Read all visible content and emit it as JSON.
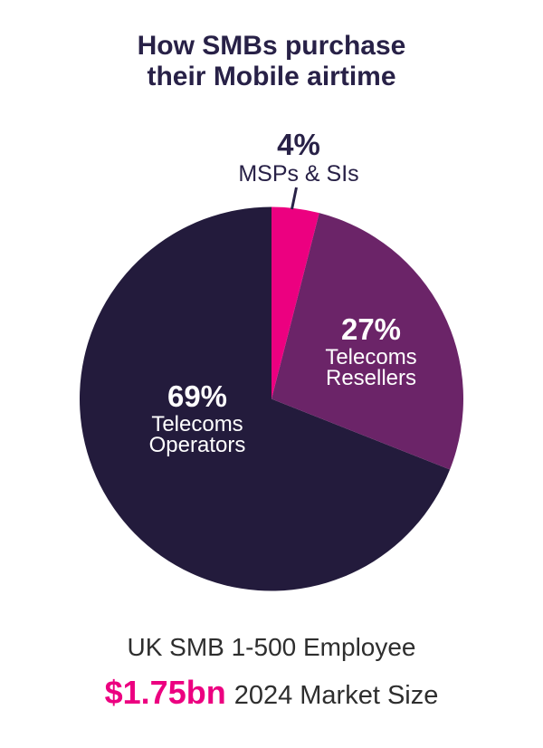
{
  "chart_data": {
    "type": "pie",
    "title": "How SMBs purchase their Mobile airtime",
    "start_angle_deg": 0,
    "direction": "clockwise",
    "legend": "none",
    "labels_inline": true,
    "slices": [
      {
        "label": "MSPs & SIs",
        "value_pct": 4,
        "display_pct": "4%",
        "color": "#ec0080",
        "label_position": "outside-top",
        "label_color": "#282147"
      },
      {
        "label": "Telecoms Resellers",
        "value_pct": 27,
        "display_pct": "27%",
        "color": "#6b2468",
        "label_position": "inside",
        "label_color": "#ffffff"
      },
      {
        "label": "Telecoms Operators",
        "value_pct": 69,
        "display_pct": "69%",
        "color": "#231b3c",
        "label_position": "inside",
        "label_color": "#ffffff"
      }
    ]
  },
  "footer": {
    "line1": "UK SMB 1-500 Employee",
    "market_value": "$1.75bn",
    "market_label": "2024 Market Size"
  },
  "colors": {
    "title_navy": "#282147",
    "pink": "#ec0080",
    "purple": "#6b2468",
    "dark_slice": "#231b3c",
    "footer_text": "#2e2e2e",
    "background": "#ffffff"
  }
}
